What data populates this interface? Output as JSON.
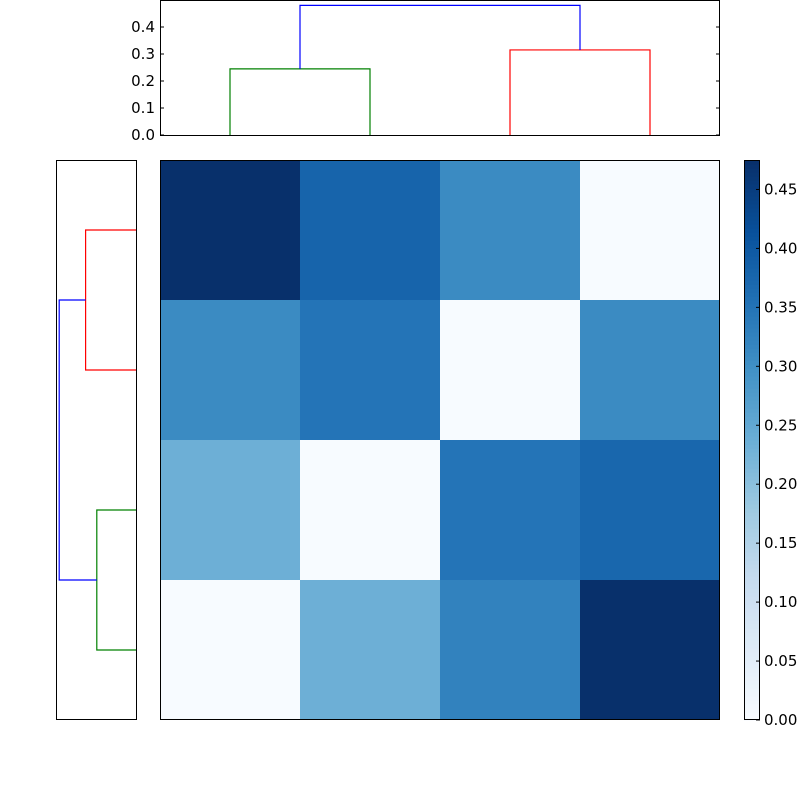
{
  "chart_data": {
    "type": "heatmap",
    "title": "",
    "matrix": [
      [
        0.475,
        0.38,
        0.31,
        0.0
      ],
      [
        0.31,
        0.35,
        0.0,
        0.31
      ],
      [
        0.235,
        0.0,
        0.35,
        0.375
      ],
      [
        0.0,
        0.235,
        0.325,
        0.475
      ]
    ],
    "colormap": "Blues",
    "color_range": [
      0.0,
      0.475
    ],
    "colorbar": {
      "ticks": [
        "0.00",
        "0.05",
        "0.10",
        "0.15",
        "0.20",
        "0.25",
        "0.30",
        "0.35",
        "0.40",
        "0.45"
      ]
    },
    "top_dendrogram": {
      "yticks": [
        "0.0",
        "0.1",
        "0.2",
        "0.3",
        "0.4"
      ],
      "ylim": [
        0,
        0.5
      ],
      "links": [
        {
          "left": 0,
          "right": 1,
          "height": 0.245,
          "color": "#008000"
        },
        {
          "left": 2,
          "right": 3,
          "height": 0.315,
          "color": "#ff0000"
        },
        {
          "left": "g",
          "right": "r",
          "height": 0.48,
          "color": "#0000ff"
        }
      ]
    },
    "left_dendrogram": {
      "links": [
        {
          "leaves": [
            0,
            1
          ],
          "height": 0.315,
          "color": "#ff0000"
        },
        {
          "leaves": [
            2,
            3
          ],
          "height": 0.245,
          "color": "#008000"
        },
        {
          "groups": [
            "r",
            "g"
          ],
          "height": 0.48,
          "color": "#0000ff"
        }
      ]
    }
  }
}
